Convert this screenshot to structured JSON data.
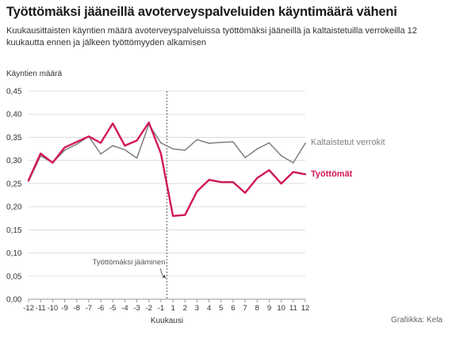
{
  "title": "Työttömäksi jääneillä avoterveyspalveluiden käyntimäärä väheni",
  "subtitle": "Kuukausittaisten käyntien määrä avoterveyspalveluissa työttömäksi jääneillä ja kaltaistetuilla verrokeilla 12 kuukautta ennen ja jälkeen työttömyyden alkamisen",
  "credit": "Grafiikka: Kela",
  "colors": {
    "unemployed": "#d1175c",
    "controls": "#7f7f7f",
    "grid": "#d6d6d6",
    "axis": "#999999",
    "annotation": "#555555"
  },
  "chart_data": {
    "type": "line",
    "xlabel": "Kuukausi",
    "ylabel": "Käyntien määrä",
    "x": [
      -12,
      -11,
      -10,
      -9,
      -8,
      -7,
      -6,
      -5,
      -4,
      -3,
      -2,
      -1,
      1,
      2,
      3,
      4,
      5,
      6,
      7,
      8,
      9,
      10,
      11,
      12
    ],
    "x_tick_labels": [
      "-12",
      "-11",
      "-10",
      "-9",
      "-8",
      "-7",
      "-6",
      "-5",
      "-4",
      "-3",
      "-2",
      "-1",
      "1",
      "2",
      "3",
      "4",
      "5",
      "6",
      "7",
      "8",
      "9",
      "10",
      "11",
      "12"
    ],
    "y_ticks": [
      "0,00",
      "0,05",
      "0,10",
      "0,15",
      "0,20",
      "0,25",
      "0,30",
      "0,35",
      "0,40",
      "0,45"
    ],
    "ylim": [
      0,
      0.45
    ],
    "grid": true,
    "series": [
      {
        "name": "Kaltaistetut verrokit",
        "color_key": "controls",
        "values": [
          0.255,
          0.31,
          0.295,
          0.322,
          0.335,
          0.352,
          0.314,
          0.332,
          0.323,
          0.305,
          0.378,
          0.338,
          0.325,
          0.322,
          0.345,
          0.337,
          0.339,
          0.34,
          0.306,
          0.325,
          0.338,
          0.31,
          0.295,
          0.337
        ]
      },
      {
        "name": "Työttömät",
        "color_key": "unemployed",
        "values": [
          0.257,
          0.315,
          0.295,
          0.328,
          0.34,
          0.352,
          0.338,
          0.38,
          0.332,
          0.343,
          0.382,
          0.315,
          0.18,
          0.182,
          0.233,
          0.258,
          0.253,
          0.253,
          0.23,
          0.262,
          0.279,
          0.25,
          0.275,
          0.27
        ]
      }
    ],
    "annotation": {
      "text": "Työttömäksi jääminen"
    }
  }
}
